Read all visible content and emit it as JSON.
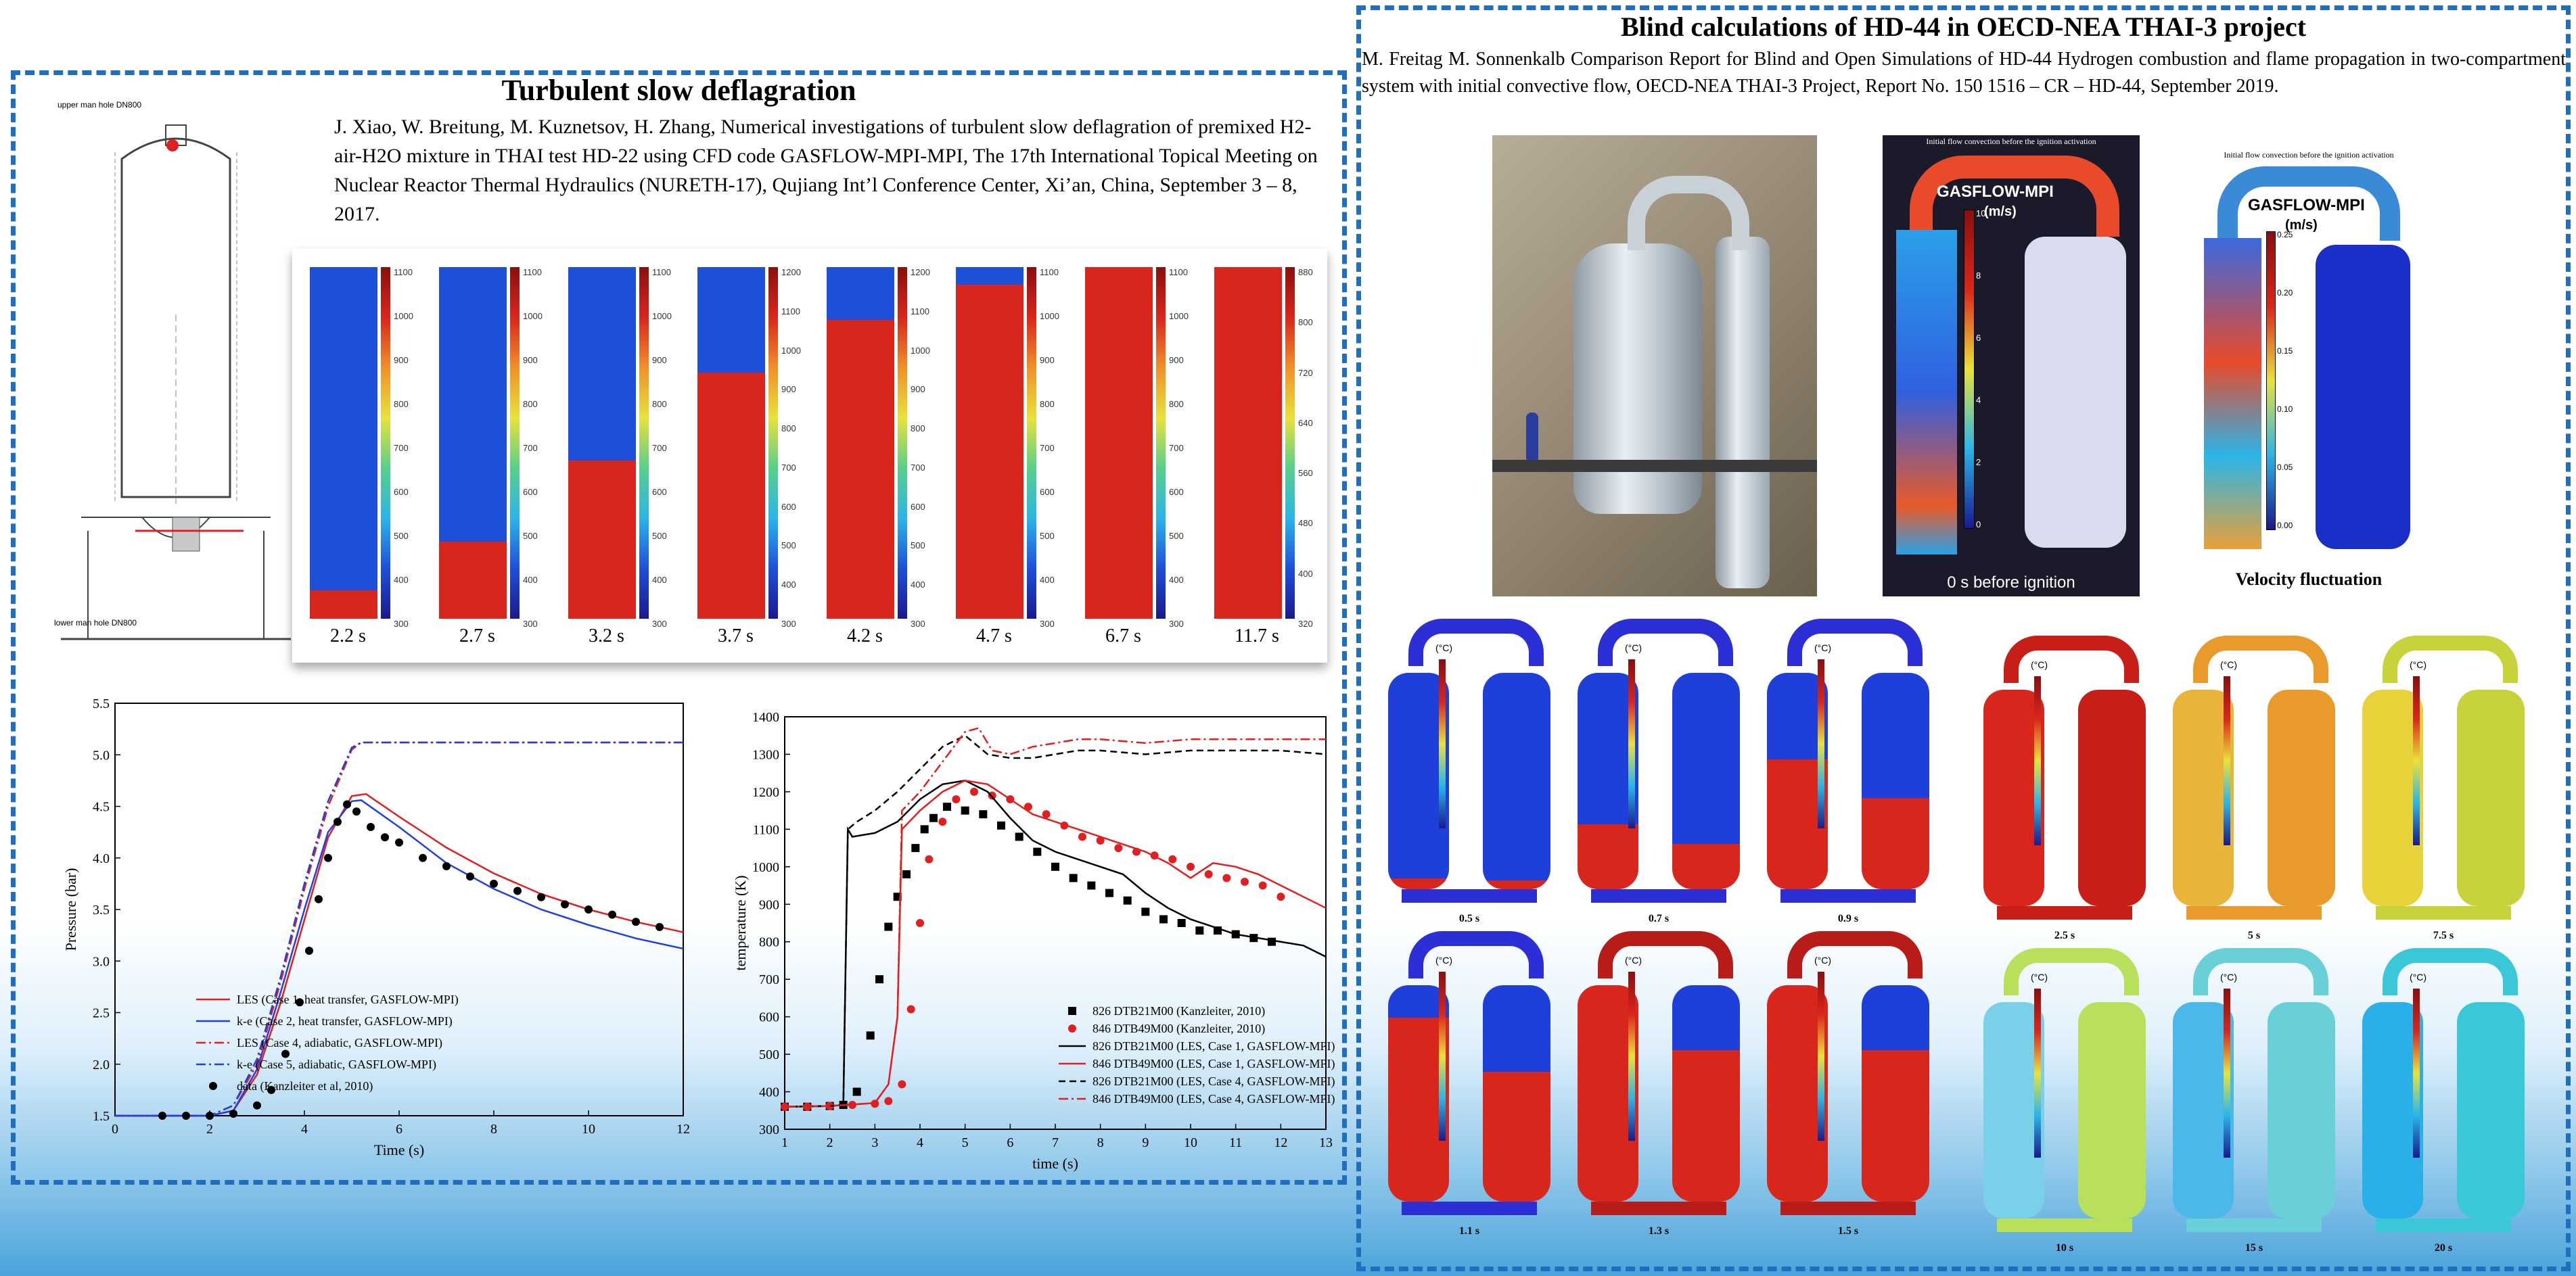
{
  "left": {
    "title": "Turbulent slow deflagration",
    "reference": "J. Xiao, W. Breitung, M. Kuznetsov, H. Zhang, Numerical investigations of turbulent slow deflagration of premixed H2-air-H2O mixture in THAI test HD-22 using CFD code GASFLOW-MPI-MPI, The 17th International Topical Meeting on Nuclear Reactor Thermal Hydraulics (NURETH-17), Qujiang Int’l Conference Center, Xi’an, China, September 3 – 8, 2017.",
    "drawing_labels": {
      "top": "upper man hole DN800",
      "bottom": "lower man hole DN800"
    },
    "snapshots": [
      {
        "time": "2.2 s",
        "ticks": [
          "1100",
          "1000",
          "900",
          "800",
          "700",
          "600",
          "500",
          "400",
          "300"
        ],
        "burn": 0.08
      },
      {
        "time": "2.7 s",
        "ticks": [
          "1100",
          "1000",
          "900",
          "800",
          "700",
          "600",
          "500",
          "400",
          "300"
        ],
        "burn": 0.22
      },
      {
        "time": "3.2 s",
        "ticks": [
          "1100",
          "1000",
          "900",
          "800",
          "700",
          "600",
          "500",
          "400",
          "300"
        ],
        "burn": 0.45
      },
      {
        "time": "3.7 s",
        "ticks": [
          "1200",
          "1100",
          "1000",
          "900",
          "800",
          "700",
          "600",
          "500",
          "400",
          "300"
        ],
        "burn": 0.7
      },
      {
        "time": "4.2 s",
        "ticks": [
          "1200",
          "1100",
          "1000",
          "900",
          "800",
          "700",
          "600",
          "500",
          "400",
          "300"
        ],
        "burn": 0.85
      },
      {
        "time": "4.7 s",
        "ticks": [
          "1100",
          "1000",
          "900",
          "800",
          "700",
          "600",
          "500",
          "400",
          "300"
        ],
        "burn": 0.95
      },
      {
        "time": "6.7 s",
        "ticks": [
          "1100",
          "1000",
          "900",
          "800",
          "700",
          "600",
          "500",
          "400",
          "300"
        ],
        "burn": 1.0
      },
      {
        "time": "11.7 s",
        "ticks": [
          "880",
          "800",
          "720",
          "640",
          "560",
          "480",
          "400",
          "320"
        ],
        "burn": 1.0
      }
    ]
  },
  "right": {
    "title": "Blind calculations of HD-44 in OECD-NEA THAI-3 project",
    "reference": "M. Freitag M. Sonnenkalb Comparison Report for Blind and Open Simulations of HD-44 Hydrogen combustion and flame propagation in two-compartment system with initial convective flow, OECD-NEA THAI-3 Project, Report No. 150 1516 – CR – HD-44, September 2019.",
    "flow1": {
      "caption": "Initial flow convection before the ignition activation",
      "code": "GASFLOW-MPI",
      "unit": "(m/s)",
      "ticks": [
        "10",
        "8",
        "6",
        "4",
        "2",
        "0"
      ],
      "bottom": "0 s before ignition"
    },
    "flow2": {
      "caption": "Initial flow convection before the ignition activation",
      "code": "GASFLOW-MPI",
      "unit": "(m/s)",
      "ticks": [
        "0.25",
        "0.20",
        "0.15",
        "0.10",
        "0.05",
        "0.00"
      ],
      "bottom": "Velocity fluctuation"
    },
    "temp_unit": "(°C)",
    "group1": [
      "0.5 s",
      "0.7 s",
      "0.9 s",
      "1.1 s",
      "1.3 s",
      "1.5 s"
    ],
    "group2": [
      "2.5 s",
      "5 s",
      "7.5 s",
      "10 s",
      "15 s",
      "20 s"
    ]
  },
  "chart_data": [
    {
      "type": "line",
      "xlabel": "Time (s)",
      "ylabel": "Pressure (bar)",
      "xlim": [
        0,
        12
      ],
      "ylim": [
        1.5,
        5.5
      ],
      "xticks": [
        0,
        2,
        4,
        6,
        8,
        10,
        12
      ],
      "yticks": [
        1.5,
        2.0,
        2.5,
        3.0,
        3.5,
        4.0,
        4.5,
        5.0,
        5.5
      ],
      "legend_position": "bottom-left",
      "series": [
        {
          "name": "LES (Case 1, heat transfer, GASFLOW-MPI)",
          "color": "#e02020",
          "dash": "solid",
          "x": [
            0,
            2,
            2.5,
            3,
            3.5,
            4,
            4.5,
            5,
            5.3,
            6,
            7,
            8,
            9,
            10,
            11,
            12
          ],
          "y": [
            1.5,
            1.5,
            1.55,
            1.9,
            2.6,
            3.4,
            4.2,
            4.6,
            4.62,
            4.4,
            4.1,
            3.85,
            3.65,
            3.5,
            3.38,
            3.28
          ]
        },
        {
          "name": "k-e (Case 2, heat transfer, GASFLOW-MPI)",
          "color": "#2040e0",
          "dash": "solid",
          "x": [
            0,
            2,
            2.5,
            3,
            3.5,
            4,
            4.5,
            5,
            5.2,
            6,
            7,
            8,
            9,
            10,
            11,
            12
          ],
          "y": [
            1.5,
            1.5,
            1.55,
            1.95,
            2.7,
            3.5,
            4.25,
            4.55,
            4.56,
            4.3,
            3.95,
            3.7,
            3.5,
            3.35,
            3.22,
            3.12
          ]
        },
        {
          "name": "LES (Case 4, adiabatic, GASFLOW-MPI)",
          "color": "#e02020",
          "dash": "dashdot",
          "x": [
            0,
            2,
            2.5,
            3,
            3.5,
            4,
            4.5,
            5,
            5.2,
            12
          ],
          "y": [
            1.5,
            1.5,
            1.6,
            2.0,
            2.8,
            3.7,
            4.5,
            5.05,
            5.12,
            5.12
          ]
        },
        {
          "name": "k-e (Case 5, adiabatic, GASFLOW-MPI)",
          "color": "#2040e0",
          "dash": "dashdot",
          "x": [
            0,
            2,
            2.5,
            3,
            3.5,
            4,
            4.5,
            5,
            5.2,
            12
          ],
          "y": [
            1.5,
            1.5,
            1.6,
            2.05,
            2.85,
            3.75,
            4.55,
            5.07,
            5.12,
            5.12
          ]
        },
        {
          "name": "data (Kanzleiter et al, 2010)",
          "color": "#000000",
          "dash": "marker",
          "x": [
            1,
            1.5,
            2,
            2.5,
            3,
            3.3,
            3.6,
            3.9,
            4.1,
            4.3,
            4.5,
            4.7,
            4.9,
            5.1,
            5.4,
            5.7,
            6,
            6.5,
            7,
            7.5,
            8,
            8.5,
            9,
            9.5,
            10,
            10.5,
            11,
            11.5
          ],
          "y": [
            1.5,
            1.5,
            1.5,
            1.52,
            1.6,
            1.75,
            2.1,
            2.6,
            3.1,
            3.6,
            4.0,
            4.35,
            4.52,
            4.45,
            4.3,
            4.2,
            4.15,
            4.0,
            3.92,
            3.82,
            3.75,
            3.68,
            3.62,
            3.55,
            3.5,
            3.45,
            3.38,
            3.33
          ]
        }
      ]
    },
    {
      "type": "line",
      "xlabel": "time (s)",
      "ylabel": "temperature (K)",
      "xlim": [
        1,
        13
      ],
      "ylim": [
        300,
        1400
      ],
      "xticks": [
        1,
        2,
        3,
        4,
        5,
        6,
        7,
        8,
        9,
        10,
        11,
        12,
        13
      ],
      "yticks": [
        300,
        400,
        500,
        600,
        700,
        800,
        900,
        1000,
        1100,
        1200,
        1300,
        1400
      ],
      "legend_position": "bottom-right",
      "series": [
        {
          "name": "826 DTB21M00 (Kanzleiter, 2010)",
          "color": "#000000",
          "dash": "square",
          "x": [
            1,
            1.5,
            2,
            2.3,
            2.6,
            2.9,
            3.1,
            3.3,
            3.5,
            3.7,
            3.9,
            4.1,
            4.3,
            4.6,
            5,
            5.4,
            5.8,
            6.2,
            6.6,
            7,
            7.4,
            7.8,
            8.2,
            8.6,
            9,
            9.4,
            9.8,
            10.2,
            10.6,
            11,
            11.4,
            11.8
          ],
          "y": [
            360,
            360,
            362,
            365,
            400,
            550,
            700,
            840,
            920,
            980,
            1050,
            1100,
            1130,
            1160,
            1150,
            1140,
            1110,
            1080,
            1040,
            1000,
            970,
            950,
            930,
            910,
            880,
            860,
            850,
            830,
            830,
            820,
            810,
            800
          ]
        },
        {
          "name": "846 DTB49M00 (Kanzleiter, 2010)",
          "color": "#e02020",
          "dash": "circle",
          "x": [
            1,
            1.5,
            2,
            2.5,
            3,
            3.3,
            3.6,
            3.8,
            4,
            4.2,
            4.5,
            4.8,
            5.2,
            5.6,
            6,
            6.4,
            6.8,
            7.2,
            7.6,
            8,
            8.4,
            8.8,
            9.2,
            9.6,
            10,
            10.4,
            10.8,
            11.2,
            11.6,
            12
          ],
          "y": [
            360,
            360,
            362,
            365,
            368,
            375,
            420,
            620,
            850,
            1020,
            1120,
            1180,
            1200,
            1190,
            1180,
            1160,
            1140,
            1110,
            1080,
            1070,
            1050,
            1040,
            1030,
            1020,
            1000,
            980,
            970,
            960,
            950,
            920
          ]
        },
        {
          "name": "826 DTB21M00 (LES, Case 1, GASFLOW-MPI)",
          "color": "#000000",
          "dash": "solid",
          "x": [
            1,
            2,
            2.3,
            2.4,
            2.5,
            3,
            3.5,
            4,
            4.5,
            5,
            5.5,
            6,
            6.5,
            7,
            7.5,
            8,
            8.5,
            9,
            9.5,
            10,
            10.5,
            11,
            11.5,
            12,
            12.5,
            13
          ],
          "y": [
            360,
            362,
            365,
            1100,
            1080,
            1090,
            1120,
            1180,
            1220,
            1230,
            1200,
            1130,
            1070,
            1040,
            1020,
            1000,
            980,
            930,
            890,
            860,
            840,
            820,
            810,
            800,
            790,
            760
          ]
        },
        {
          "name": "846 DTB49M00 (LES, Case 1, GASFLOW-MPI)",
          "color": "#e02020",
          "dash": "solid",
          "x": [
            1,
            2,
            3,
            3.3,
            3.5,
            3.6,
            4,
            4.5,
            5,
            5.5,
            6,
            6.5,
            7,
            7.5,
            8,
            8.5,
            9,
            9.5,
            10,
            10.5,
            11,
            11.5,
            12,
            12.5,
            13
          ],
          "y": [
            360,
            362,
            370,
            420,
            600,
            1100,
            1150,
            1200,
            1230,
            1220,
            1180,
            1140,
            1120,
            1100,
            1080,
            1060,
            1040,
            1010,
            970,
            1010,
            1000,
            980,
            950,
            920,
            890
          ]
        },
        {
          "name": "826 DTB21M00 (LES, Case 4, GASFLOW-MPI)",
          "color": "#000000",
          "dash": "dashed",
          "x": [
            1,
            2,
            2.3,
            2.4,
            2.6,
            3,
            3.5,
            4,
            4.5,
            5,
            5.5,
            6,
            6.5,
            7,
            7.5,
            8,
            9,
            10,
            11,
            12,
            13
          ],
          "y": [
            360,
            362,
            365,
            1100,
            1120,
            1150,
            1200,
            1260,
            1320,
            1350,
            1300,
            1290,
            1290,
            1300,
            1310,
            1310,
            1300,
            1310,
            1310,
            1310,
            1300
          ]
        },
        {
          "name": "846 DTB49M00 (LES, Case 4, GASFLOW-MPI)",
          "color": "#e02020",
          "dash": "dashdot",
          "x": [
            1,
            2,
            3,
            3.3,
            3.5,
            3.6,
            4,
            4.5,
            5,
            5.3,
            5.6,
            6,
            6.5,
            7,
            7.5,
            8,
            9,
            10,
            11,
            12,
            13
          ],
          "y": [
            360,
            362,
            370,
            420,
            600,
            1150,
            1200,
            1280,
            1360,
            1370,
            1310,
            1300,
            1320,
            1330,
            1340,
            1340,
            1330,
            1340,
            1340,
            1340,
            1340
          ]
        }
      ]
    }
  ]
}
